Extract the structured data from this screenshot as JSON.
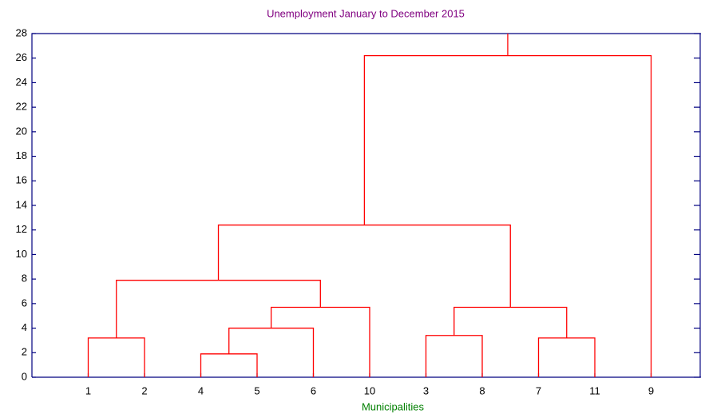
{
  "chart_data": {
    "type": "dendrogram",
    "title": "Unemployment January to December 2015",
    "xlabel": "Municipalities",
    "leaves": [
      "1",
      "2",
      "4",
      "5",
      "6",
      "10",
      "3",
      "8",
      "7",
      "11",
      "9"
    ],
    "merges": [
      {
        "children": [
          0,
          1
        ],
        "height": 3.2
      },
      {
        "children": [
          2,
          3
        ],
        "height": 1.9
      },
      {
        "children": [
          12,
          4
        ],
        "height": 4.0
      },
      {
        "children": [
          13,
          5
        ],
        "height": 5.7
      },
      {
        "children": [
          11,
          14
        ],
        "height": 7.9
      },
      {
        "children": [
          6,
          7
        ],
        "height": 3.4
      },
      {
        "children": [
          8,
          9
        ],
        "height": 3.2
      },
      {
        "children": [
          16,
          17
        ],
        "height": 5.7
      },
      {
        "children": [
          15,
          18
        ],
        "height": 12.4
      },
      {
        "children": [
          19,
          10
        ],
        "height": 26.2
      }
    ],
    "color": "#ff0000",
    "ylim": [
      0,
      28
    ],
    "yticks": [
      0,
      2,
      4,
      6,
      8,
      10,
      12,
      14,
      16,
      18,
      20,
      22,
      24,
      26,
      28
    ]
  }
}
